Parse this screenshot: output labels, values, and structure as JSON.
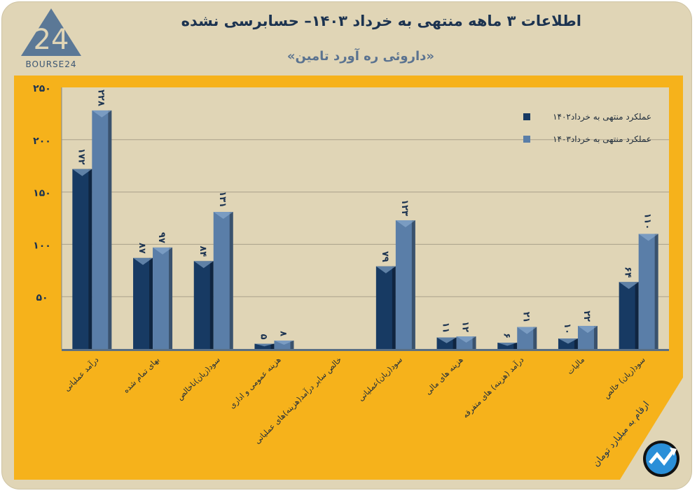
{
  "header": {
    "title": "اطلاعات ۳ ماهه منتهی به خرداد ۱۴۰۳– حسابرسی نشده",
    "subtitle": "«داروئی ره آورد تامین»",
    "logo_text": "BOURSE24"
  },
  "footer_note": "ارقام به میلیارد تومان",
  "colors": {
    "background": "#e0d5b6",
    "panel": "#f6b21b",
    "series_1402": "#173a63",
    "series_1403": "#5a7ea8",
    "text": "#1c3350"
  },
  "chart_data": {
    "type": "bar",
    "title": "اطلاعات ۳ ماهه منتهی به خرداد ۱۴۰۳– حسابرسی نشده",
    "categories": [
      "درآمد عملیاتی",
      "بهای تمام شده",
      "سود(زیان)ناخالص",
      "هزینه عمومی و اداری",
      "خالص سایر درآمد(هزینه)های عملیاتی",
      "سود(زیان)عملیاتی",
      "هزینه های مالی",
      "درآمد (هزینه) های متفرقه",
      "مالیات",
      "سود(زیان) خالص"
    ],
    "series": [
      {
        "name": "عملکرد منتهی به خرداد۱۴۰۲",
        "values": [
          172,
          87,
          84,
          5,
          null,
          79,
          11,
          6,
          10,
          64
        ],
        "labels": [
          "۱۷۲",
          "۸۷",
          "۸۴",
          "۵",
          "",
          "۷۹",
          "۱۱",
          "۶",
          "۱۰",
          "۶۴"
        ]
      },
      {
        "name": "عملکرد منتهی به خرداد۱۴۰۳",
        "values": [
          228,
          97,
          131,
          8,
          null,
          123,
          12,
          21,
          22,
          110
        ],
        "labels": [
          "۲۲۸",
          "۹۷",
          "۱۳۱",
          "۸",
          "",
          "۱۲۳",
          "۱۲",
          "۲۱",
          "۲۲",
          "۱۱۰"
        ]
      }
    ],
    "ylim": [
      0,
      250
    ],
    "yticks": [
      50,
      100,
      150,
      200,
      250
    ],
    "ytick_labels": [
      "۵۰",
      "۱۰۰",
      "۱۵۰",
      "۲۰۰",
      "۲۵۰"
    ],
    "grid": true,
    "legend": "top-right",
    "unit_note": "ارقام به میلیارد تومان"
  }
}
